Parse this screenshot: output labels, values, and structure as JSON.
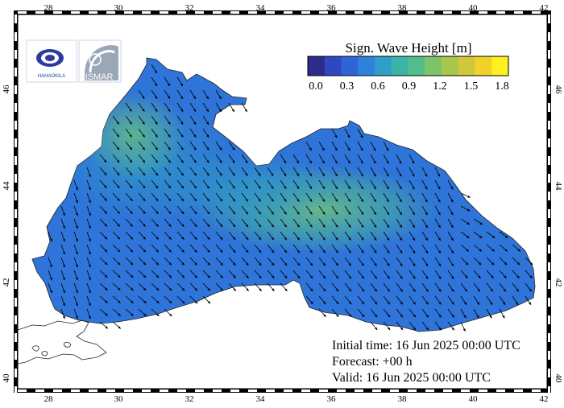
{
  "map": {
    "title": "Sign. Wave Height [m]",
    "lon_ticks": [
      "28",
      "30",
      "32",
      "34",
      "36",
      "38",
      "40",
      "42"
    ],
    "lat_ticks": [
      "40",
      "42",
      "44",
      "46"
    ],
    "colorbar": {
      "labels": [
        "0.0",
        "0.3",
        "0.6",
        "0.9",
        "1.2",
        "1.5",
        "1.8"
      ],
      "colors": [
        "#2a2b8a",
        "#2f48c0",
        "#2f64d6",
        "#2f82dc",
        "#2f9ec8",
        "#3bb3a8",
        "#52bf8a",
        "#7cc46a",
        "#a8c64c",
        "#d0c83a",
        "#f0d22a",
        "#fff020"
      ]
    },
    "sea_colors": {
      "base": "#2f74d8",
      "medium": "#2f92cc",
      "high": "#48b0a0",
      "peak": "#62b88a",
      "land": "#ffffff",
      "coast": "#222222"
    },
    "arrow_color": "#000000",
    "logos": {
      "left_text": "HAHAOKILA",
      "right_text": "ISMAR"
    },
    "info": {
      "initial_time": "Initial time: 16 Jun 2025 00:00 UTC",
      "forecast": "Forecast: +00 h",
      "valid": "Valid: 16 Jun 2025 00:00 UTC"
    }
  }
}
